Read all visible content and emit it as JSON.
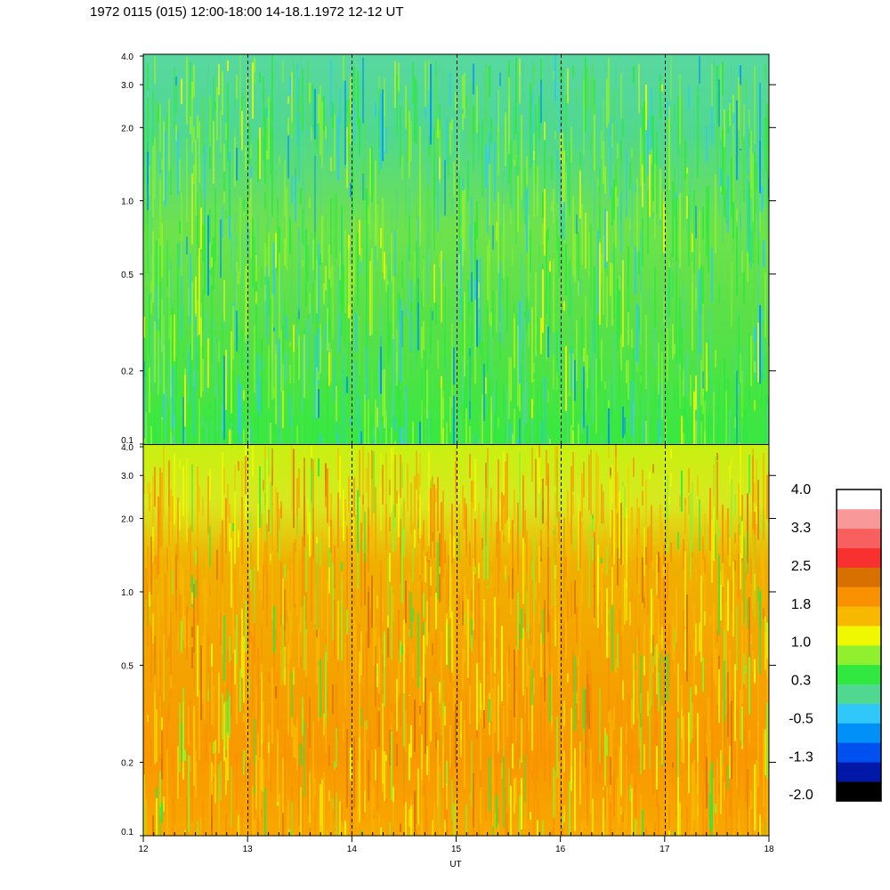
{
  "title": "1972 0115 (015) 12:00-18:00 14-18.1.1972  12-12 UT",
  "colors": {
    "frame": "#000000",
    "background": "#ffffff",
    "palette": [
      "#000000",
      "#0018a8",
      "#0050f0",
      "#0090f8",
      "#30c8f8",
      "#50d890",
      "#30e840",
      "#90f030",
      "#f0f800",
      "#f8b800",
      "#f89000",
      "#d87000",
      "#f83030",
      "#f86060",
      "#f89898",
      "#ffffff"
    ]
  },
  "chart_data": [
    {
      "type": "heatmap",
      "panel": "upper",
      "xlabel": "",
      "ylabel": "",
      "xlim": [
        12,
        18
      ],
      "ylim": [
        0.1,
        4.0
      ],
      "yscale": "log",
      "ytick_labels": [
        "0.1",
        "0.2",
        "0.5",
        "1.0",
        "2.0",
        "3.0",
        "4.0"
      ],
      "ytick_values": [
        0.1,
        0.2,
        0.5,
        1.0,
        2.0,
        3.0,
        4.0
      ],
      "day_boundaries": [
        13,
        14,
        15,
        16,
        17
      ],
      "dominant_level_range": [
        -0.5,
        1.0
      ]
    },
    {
      "type": "heatmap",
      "panel": "lower",
      "xlabel": "UT",
      "ylabel": "",
      "xlim": [
        12,
        18
      ],
      "ylim": [
        0.1,
        4.0
      ],
      "yscale": "log",
      "xtick_labels": [
        "12",
        "13",
        "14",
        "15",
        "16",
        "17",
        "18"
      ],
      "xtick_values": [
        12,
        13,
        14,
        15,
        16,
        17,
        18
      ],
      "ytick_labels": [
        "0.1",
        "0.2",
        "0.5",
        "1.0",
        "2.0",
        "3.0",
        "4.0"
      ],
      "ytick_values": [
        0.1,
        0.2,
        0.5,
        1.0,
        2.0,
        3.0,
        4.0
      ],
      "day_boundaries": [
        13,
        14,
        15,
        16,
        17
      ],
      "dominant_level_range": [
        0.3,
        2.5
      ]
    }
  ],
  "colorbar": {
    "labels": [
      "4.0",
      "3.3",
      "2.5",
      "1.8",
      "1.0",
      "0.3",
      "-0.5",
      "-1.3",
      "-2.0"
    ],
    "range": [
      -2.0,
      4.0
    ],
    "levels": 16
  }
}
